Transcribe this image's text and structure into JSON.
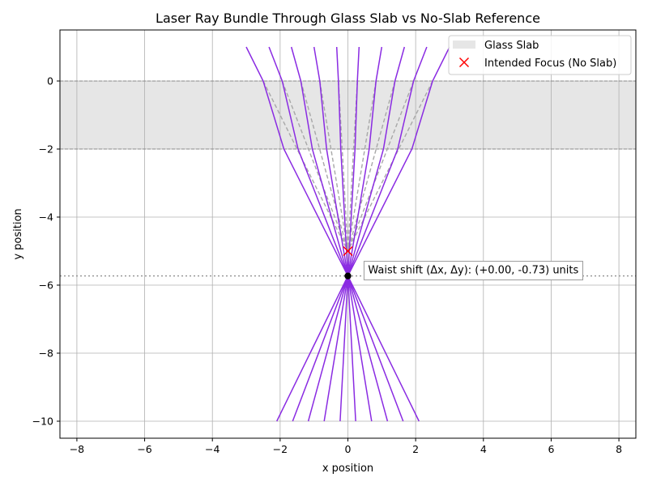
{
  "chart_data": {
    "type": "line",
    "title": "Laser Ray Bundle Through Glass Slab vs No-Slab Reference",
    "xlabel": "x position",
    "ylabel": "y position",
    "xlim": [
      -8.5,
      8.5
    ],
    "ylim": [
      -10.5,
      1.5
    ],
    "xticks": [
      -8,
      -6,
      -4,
      -2,
      0,
      2,
      4,
      6,
      8
    ],
    "yticks": [
      -10,
      -8,
      -6,
      -4,
      -2,
      0
    ],
    "xtick_labels": [
      "−8",
      "−6",
      "−4",
      "−2",
      "0",
      "2",
      "4",
      "6",
      "8"
    ],
    "ytick_labels": [
      "−10",
      "−8",
      "−6",
      "−4",
      "−2",
      "0"
    ],
    "grid": true,
    "legend_position": "top-right",
    "slab": {
      "name": "Glass Slab",
      "y_top": 0,
      "y_bottom": -2,
      "color": "#e6e6e6"
    },
    "intended_focus": {
      "name": "Intended Focus (No Slab)",
      "x": 0,
      "y": -5,
      "color": "#ff0000"
    },
    "actual_waist": {
      "x": 0,
      "y": -5.73
    },
    "waist_line_y": -5.73,
    "ray_color": "#8a2be2",
    "reference_color": "#a8a8a8",
    "rays": [
      {
        "x_start": -3.0,
        "x_slab_top": -2.5,
        "x_slab_bottom": -1.89,
        "x_end": -2.1
      },
      {
        "x_start": -2.33,
        "x_slab_top": -1.94,
        "x_slab_bottom": -1.47,
        "x_end": -1.63
      },
      {
        "x_start": -1.67,
        "x_slab_top": -1.39,
        "x_slab_bottom": -1.05,
        "x_end": -1.17
      },
      {
        "x_start": -1.0,
        "x_slab_top": -0.83,
        "x_slab_bottom": -0.63,
        "x_end": -0.7
      },
      {
        "x_start": -0.33,
        "x_slab_top": -0.28,
        "x_slab_bottom": -0.21,
        "x_end": -0.23
      },
      {
        "x_start": 0.33,
        "x_slab_top": 0.28,
        "x_slab_bottom": 0.21,
        "x_end": 0.23
      },
      {
        "x_start": 1.0,
        "x_slab_top": 0.83,
        "x_slab_bottom": 0.63,
        "x_end": 0.7
      },
      {
        "x_start": 1.67,
        "x_slab_top": 1.39,
        "x_slab_bottom": 1.05,
        "x_end": 1.17
      },
      {
        "x_start": 2.33,
        "x_slab_top": 1.94,
        "x_slab_bottom": 1.47,
        "x_end": 1.63
      },
      {
        "x_start": 3.0,
        "x_slab_top": 2.5,
        "x_slab_bottom": 1.89,
        "x_end": 2.1
      }
    ],
    "ray_y_start": 1.0,
    "ray_y_end": -10.0,
    "annotation": "Waist shift (Δx, Δy): (+0.00, -0.73) units",
    "annotation_anchor": {
      "x": 0.5,
      "y": -5.55
    }
  }
}
